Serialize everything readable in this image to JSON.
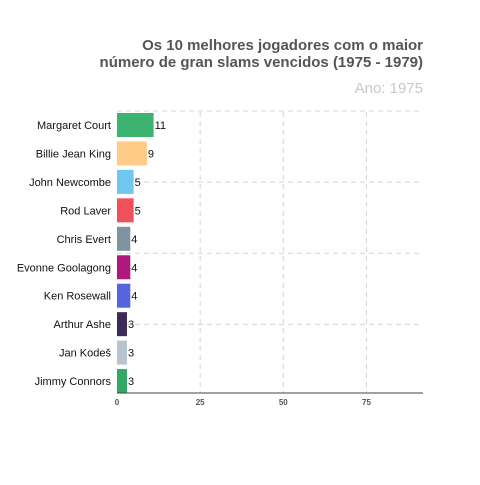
{
  "chart_data": {
    "type": "bar",
    "orientation": "horizontal",
    "title_lines": [
      "Os 10 melhores jogadores com o maior",
      "número de gran slams vencidos (1975 - 1979)"
    ],
    "subtitle": "Ano: 1975",
    "categories": [
      "Margaret Court",
      "Billie Jean King",
      "John Newcombe",
      "Rod Laver",
      "Chris Evert",
      "Evonne Goolagong",
      "Ken Rosewall",
      "Arthur Ashe",
      "Jan Kodeš",
      "Jimmy Connors"
    ],
    "values": [
      11,
      9,
      5,
      5,
      4,
      4,
      4,
      3,
      3,
      3
    ],
    "value_labels": [
      "11",
      "9",
      "5",
      "5",
      "4",
      "4",
      "4",
      "3",
      "3",
      "3"
    ],
    "colors": [
      "#3cb371",
      "#ffcc88",
      "#6ec8f0",
      "#f0505a",
      "#7f949f",
      "#b01880",
      "#5566dd",
      "#3d2a5a",
      "#b8c4d0",
      "#33a865"
    ],
    "xticks": [
      0,
      25,
      50,
      75
    ],
    "xtick_labels": [
      "0",
      "25",
      "50",
      "75"
    ],
    "xlim": [
      0,
      92
    ],
    "xlabel": "",
    "ylabel": "",
    "grid": true,
    "legend": "none"
  }
}
